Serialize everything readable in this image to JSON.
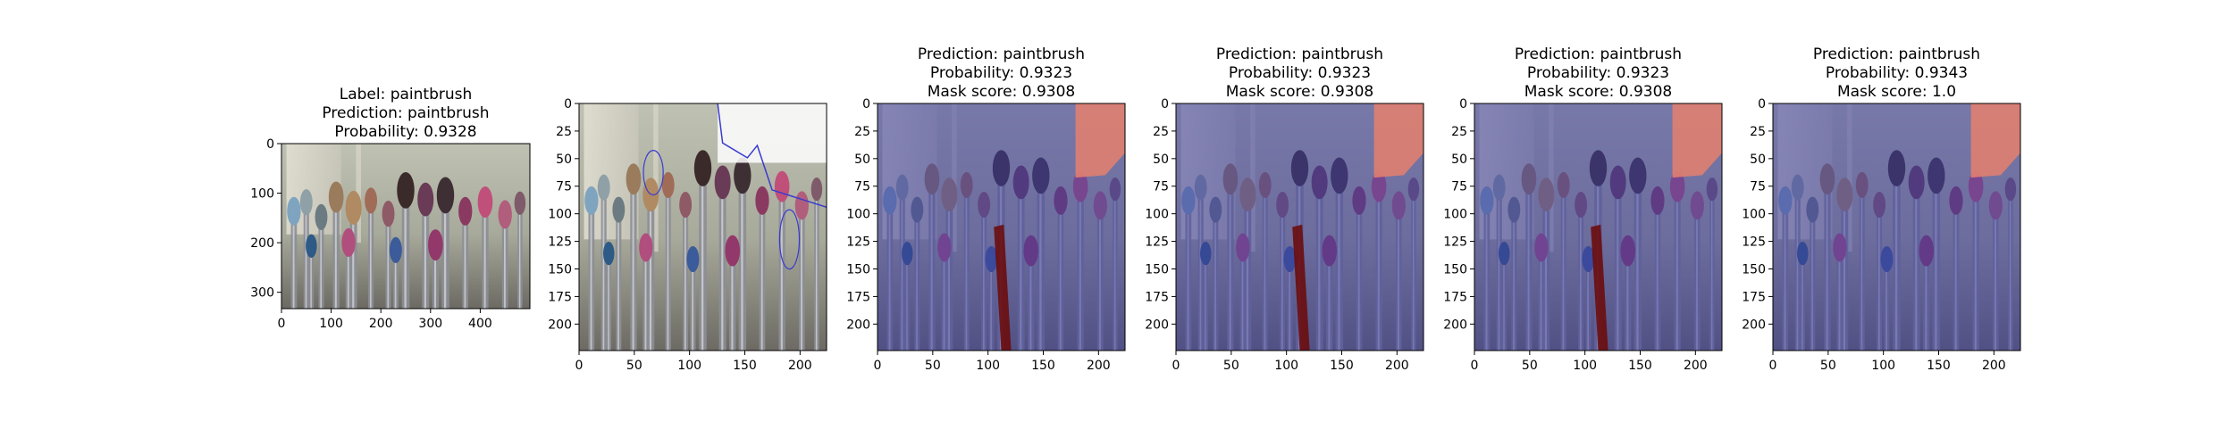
{
  "panels": [
    {
      "title_lines": [
        "Label: paintbrush",
        "Prediction: paintbrush",
        "Probability: 0.9328"
      ],
      "image": "original",
      "x_ticks": [
        "0",
        "100",
        "200",
        "300",
        "400"
      ],
      "y_ticks": [
        "0",
        "100",
        "200",
        "300"
      ]
    },
    {
      "title_lines": [],
      "image": "resized-with-outline",
      "x_ticks": [
        "0",
        "50",
        "100",
        "150",
        "200"
      ],
      "y_ticks": [
        "0",
        "25",
        "50",
        "75",
        "100",
        "125",
        "150",
        "175",
        "200"
      ]
    },
    {
      "title_lines": [
        "Prediction: paintbrush",
        "Probability: 0.9323",
        "Mask score: 0.9308"
      ],
      "image": "masked",
      "x_ticks": [
        "0",
        "50",
        "100",
        "150",
        "200"
      ],
      "y_ticks": [
        "0",
        "25",
        "50",
        "75",
        "100",
        "125",
        "150",
        "175",
        "200"
      ]
    },
    {
      "title_lines": [
        "Prediction: paintbrush",
        "Probability: 0.9323",
        "Mask score: 0.9308"
      ],
      "image": "masked",
      "x_ticks": [
        "0",
        "50",
        "100",
        "150",
        "200"
      ],
      "y_ticks": [
        "0",
        "25",
        "50",
        "75",
        "100",
        "125",
        "150",
        "175",
        "200"
      ]
    },
    {
      "title_lines": [
        "Prediction: paintbrush",
        "Probability: 0.9323",
        "Mask score: 0.9308"
      ],
      "image": "masked",
      "x_ticks": [
        "0",
        "50",
        "100",
        "150",
        "200"
      ],
      "y_ticks": [
        "0",
        "25",
        "50",
        "75",
        "100",
        "125",
        "150",
        "175",
        "200"
      ]
    },
    {
      "title_lines": [
        "Prediction: paintbrush",
        "Probability: 0.9343",
        "Mask score: 1.0"
      ],
      "image": "masked-no-handle",
      "x_ticks": [
        "0",
        "50",
        "100",
        "150",
        "200"
      ],
      "y_ticks": [
        "0",
        "25",
        "50",
        "75",
        "100",
        "125",
        "150",
        "175",
        "200"
      ]
    }
  ],
  "colors": {
    "mask_overlay": "#3c3ca0",
    "mask_highlight": "#e08070",
    "mask_handle": "#6a0d0d",
    "outline": "#3a3ad0"
  }
}
